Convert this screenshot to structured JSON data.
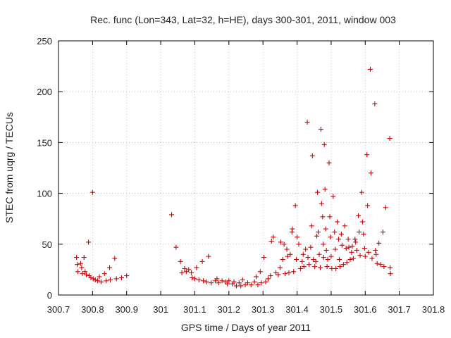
{
  "chart_data": {
    "type": "scatter",
    "title": "Rec. func (Lon=343, Lat=32, h=HE), days 300-301, 2011, window 003",
    "xlabel": "GPS time / Days of year 2011",
    "ylabel": "STEC from uqrg / TECUs",
    "xlim": [
      300.7,
      301.8
    ],
    "ylim": [
      0,
      250
    ],
    "xticks": [
      "300.7",
      "300.8",
      "300.9",
      "301",
      "301.1",
      "301.2",
      "301.3",
      "301.4",
      "301.5",
      "301.6",
      "301.7",
      "301.8"
    ],
    "yticks": [
      "0",
      "50",
      "100",
      "150",
      "200",
      "250"
    ],
    "marker": "+",
    "color": "#cc0000",
    "series": [
      {
        "name": "STEC",
        "points": [
          [
            300.753,
            37
          ],
          [
            300.755,
            30
          ],
          [
            300.757,
            23
          ],
          [
            300.765,
            31
          ],
          [
            300.768,
            27
          ],
          [
            300.77,
            21
          ],
          [
            300.775,
            37
          ],
          [
            300.778,
            23
          ],
          [
            300.782,
            20
          ],
          [
            300.788,
            52
          ],
          [
            300.79,
            19
          ],
          [
            300.795,
            17
          ],
          [
            300.8,
            101
          ],
          [
            300.802,
            16
          ],
          [
            300.808,
            15
          ],
          [
            300.815,
            14
          ],
          [
            300.82,
            18
          ],
          [
            300.825,
            13
          ],
          [
            300.835,
            21
          ],
          [
            300.84,
            14
          ],
          [
            300.85,
            27
          ],
          [
            300.852,
            15
          ],
          [
            300.865,
            36
          ],
          [
            300.87,
            16
          ],
          [
            300.885,
            17
          ],
          [
            300.9,
            19
          ],
          [
            301.032,
            79
          ],
          [
            301.045,
            47
          ],
          [
            301.058,
            33
          ],
          [
            301.062,
            22
          ],
          [
            301.07,
            26
          ],
          [
            301.075,
            23
          ],
          [
            301.082,
            25
          ],
          [
            301.09,
            22
          ],
          [
            301.092,
            17
          ],
          [
            301.1,
            16
          ],
          [
            301.105,
            27
          ],
          [
            301.112,
            15
          ],
          [
            301.122,
            33
          ],
          [
            301.125,
            14
          ],
          [
            301.135,
            13
          ],
          [
            301.14,
            38
          ],
          [
            301.148,
            12
          ],
          [
            301.16,
            14
          ],
          [
            301.165,
            16
          ],
          [
            301.17,
            12
          ],
          [
            301.18,
            14
          ],
          [
            301.19,
            13
          ],
          [
            301.195,
            11
          ],
          [
            301.2,
            14
          ],
          [
            301.21,
            11
          ],
          [
            301.215,
            13
          ],
          [
            301.222,
            9
          ],
          [
            301.23,
            12
          ],
          [
            301.235,
            9
          ],
          [
            301.24,
            15
          ],
          [
            301.248,
            10
          ],
          [
            301.255,
            12
          ],
          [
            301.265,
            10
          ],
          [
            301.275,
            13
          ],
          [
            301.28,
            18
          ],
          [
            301.285,
            10
          ],
          [
            301.292,
            23
          ],
          [
            301.295,
            12
          ],
          [
            301.303,
            37
          ],
          [
            301.308,
            13
          ],
          [
            301.315,
            16
          ],
          [
            301.322,
            19
          ],
          [
            301.325,
            53
          ],
          [
            301.33,
            57
          ],
          [
            301.338,
            22
          ],
          [
            301.345,
            20
          ],
          [
            301.35,
            27
          ],
          [
            301.352,
            52
          ],
          [
            301.358,
            35
          ],
          [
            301.362,
            50
          ],
          [
            301.365,
            21
          ],
          [
            301.37,
            45
          ],
          [
            301.372,
            38
          ],
          [
            301.376,
            22
          ],
          [
            301.38,
            40
          ],
          [
            301.385,
            62
          ],
          [
            301.386,
            65
          ],
          [
            301.39,
            23
          ],
          [
            301.395,
            88
          ],
          [
            301.398,
            35
          ],
          [
            301.4,
            57
          ],
          [
            301.405,
            50
          ],
          [
            301.41,
            26
          ],
          [
            301.415,
            33
          ],
          [
            301.418,
            40
          ],
          [
            301.42,
            28
          ],
          [
            301.425,
            45
          ],
          [
            301.43,
            170
          ],
          [
            301.432,
            37
          ],
          [
            301.435,
            30
          ],
          [
            301.44,
            47
          ],
          [
            301.443,
            68
          ],
          [
            301.445,
            137
          ],
          [
            301.448,
            35
          ],
          [
            301.452,
            28
          ],
          [
            301.455,
            33
          ],
          [
            301.458,
            58
          ],
          [
            301.46,
            101
          ],
          [
            301.462,
            62
          ],
          [
            301.465,
            40
          ],
          [
            301.468,
            27
          ],
          [
            301.47,
            163
          ],
          [
            301.472,
            90
          ],
          [
            301.475,
            77
          ],
          [
            301.477,
            50
          ],
          [
            301.478,
            37
          ],
          [
            301.48,
            148
          ],
          [
            301.482,
            104
          ],
          [
            301.484,
            65
          ],
          [
            301.486,
            44
          ],
          [
            301.488,
            28
          ],
          [
            301.49,
            35
          ],
          [
            301.494,
            130
          ],
          [
            301.496,
            77
          ],
          [
            301.498,
            57
          ],
          [
            301.5,
            38
          ],
          [
            301.502,
            26
          ],
          [
            301.506,
            97
          ],
          [
            301.51,
            62
          ],
          [
            301.512,
            45
          ],
          [
            301.514,
            26
          ],
          [
            301.518,
            72
          ],
          [
            301.522,
            55
          ],
          [
            301.524,
            35
          ],
          [
            301.526,
            28
          ],
          [
            301.53,
            60
          ],
          [
            301.532,
            49
          ],
          [
            301.536,
            30
          ],
          [
            301.54,
            68
          ],
          [
            301.544,
            46
          ],
          [
            301.546,
            32
          ],
          [
            301.55,
            55
          ],
          [
            301.552,
            47
          ],
          [
            301.556,
            35
          ],
          [
            301.56,
            42
          ],
          [
            301.562,
            48
          ],
          [
            301.565,
            36
          ],
          [
            301.57,
            55
          ],
          [
            301.572,
            52
          ],
          [
            301.575,
            44
          ],
          [
            301.58,
            78
          ],
          [
            301.582,
            62
          ],
          [
            301.585,
            39
          ],
          [
            301.59,
            101
          ],
          [
            301.592,
            72
          ],
          [
            301.595,
            60
          ],
          [
            301.598,
            46
          ],
          [
            301.6,
            38
          ],
          [
            301.605,
            138
          ],
          [
            301.607,
            88
          ],
          [
            301.61,
            42
          ],
          [
            301.615,
            222
          ],
          [
            301.617,
            120
          ],
          [
            301.62,
            36
          ],
          [
            301.628,
            188
          ],
          [
            301.63,
            44
          ],
          [
            301.632,
            40
          ],
          [
            301.635,
            31
          ],
          [
            301.64,
            51
          ],
          [
            301.645,
            30
          ],
          [
            301.652,
            62
          ],
          [
            301.655,
            28
          ],
          [
            301.66,
            86
          ],
          [
            301.672,
            154
          ],
          [
            301.673,
            27
          ],
          [
            301.674,
            21
          ]
        ]
      }
    ]
  }
}
